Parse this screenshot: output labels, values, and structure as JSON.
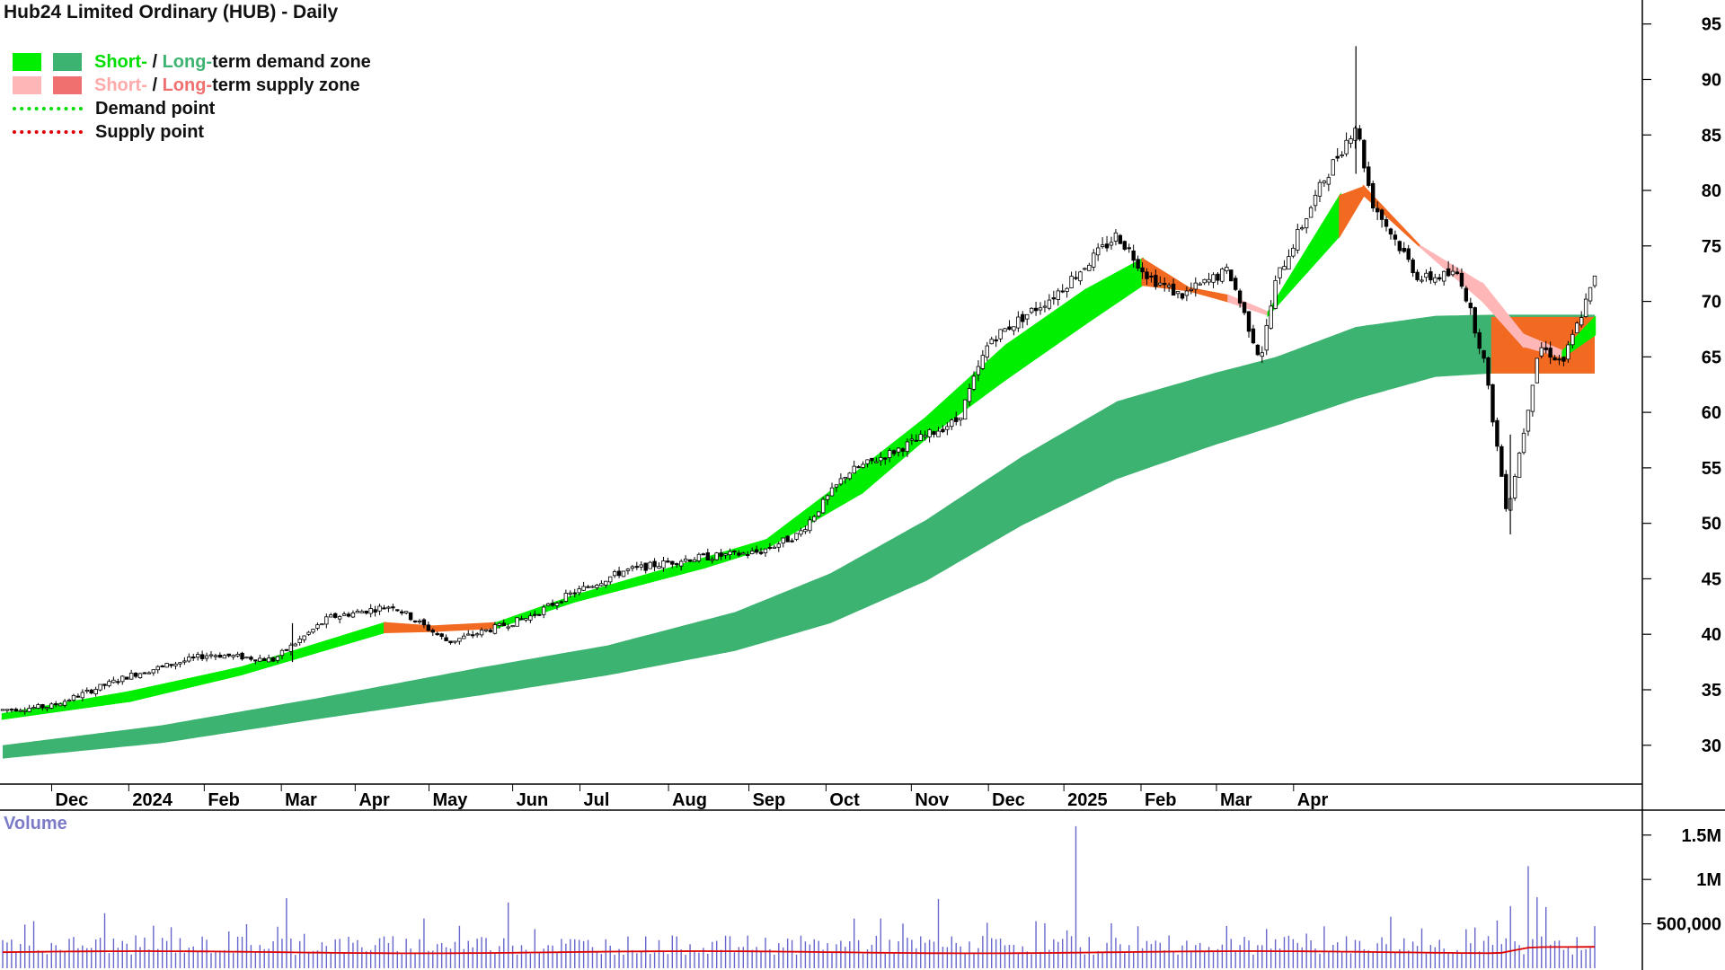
{
  "title": "Hub24 Limited Ordinary (HUB) - Daily",
  "legend": {
    "demand_short": "Short-",
    "demand_sep": " / ",
    "demand_long": "Long-",
    "demand_rest": "term demand zone",
    "supply_short": "Short-",
    "supply_sep": " / ",
    "supply_long": "Long-",
    "supply_rest": "term supply zone",
    "demand_point": "Demand point",
    "supply_point": "Supply point"
  },
  "colors": {
    "short_demand": "#00ee00",
    "long_demand": "#3cb371",
    "short_supply": "#ffb6b6",
    "long_supply": "#f07070",
    "zone_orange": "#f26a21",
    "demand_point": "#00dd00",
    "supply_point": "#dd0000",
    "volume_bar": "#6666cc",
    "volume_avg": "#dd0000",
    "volume_label": "#7b7bc8"
  },
  "chart_data": {
    "type": "candlestick",
    "price_axis": {
      "ticks": [
        95,
        90,
        85,
        80,
        75,
        70,
        65,
        60,
        55,
        50,
        45,
        40,
        35,
        30
      ],
      "ylim": [
        26.5,
        97
      ]
    },
    "time_axis": {
      "labels": [
        "Dec",
        "2024",
        "Feb",
        "Mar",
        "Apr",
        "May",
        "Jun",
        "Jul",
        "Aug",
        "Sep",
        "Oct",
        "Nov",
        "Dec",
        "2025",
        "Feb",
        "Mar",
        "Apr"
      ]
    },
    "volume_axis": {
      "label": "Volume",
      "ticks": [
        "1.5M",
        "1M",
        "500,000"
      ],
      "tick_values": [
        1500000,
        1000000,
        500000
      ],
      "ylim": [
        0,
        1700000
      ]
    },
    "price_path": [
      {
        "t": 0,
        "p": 33.2
      },
      {
        "t": 0.03,
        "p": 33.5
      },
      {
        "t": 0.08,
        "p": 36.3
      },
      {
        "t": 0.13,
        "p": 38.2
      },
      {
        "t": 0.17,
        "p": 37.7
      },
      {
        "t": 0.205,
        "p": 41.5
      },
      {
        "t": 0.245,
        "p": 42.6
      },
      {
        "t": 0.28,
        "p": 39.3
      },
      {
        "t": 0.33,
        "p": 41.5
      },
      {
        "t": 0.355,
        "p": 43.5
      },
      {
        "t": 0.39,
        "p": 45.7
      },
      {
        "t": 0.43,
        "p": 46.8
      },
      {
        "t": 0.475,
        "p": 47.4
      },
      {
        "t": 0.5,
        "p": 49.0
      },
      {
        "t": 0.53,
        "p": 54.5
      },
      {
        "t": 0.56,
        "p": 56.5
      },
      {
        "t": 0.6,
        "p": 59.3
      },
      {
        "t": 0.62,
        "p": 66.5
      },
      {
        "t": 0.66,
        "p": 70.5
      },
      {
        "t": 0.7,
        "p": 76.0
      },
      {
        "t": 0.72,
        "p": 72.2
      },
      {
        "t": 0.74,
        "p": 70.5
      },
      {
        "t": 0.77,
        "p": 72.8
      },
      {
        "t": 0.79,
        "p": 64.8
      },
      {
        "t": 0.8,
        "p": 72.0
      },
      {
        "t": 0.83,
        "p": 81.0
      },
      {
        "t": 0.85,
        "p": 86.0
      },
      {
        "t": 0.86,
        "p": 79.0
      },
      {
        "t": 0.89,
        "p": 72.0
      },
      {
        "t": 0.915,
        "p": 72.5
      },
      {
        "t": 0.93,
        "p": 65.0
      },
      {
        "t": 0.945,
        "p": 51.0
      },
      {
        "t": 0.955,
        "p": 58.0
      },
      {
        "t": 0.965,
        "p": 66.0
      },
      {
        "t": 0.98,
        "p": 64.5
      },
      {
        "t": 1,
        "p": 72.0
      }
    ],
    "short_term_zone": [
      {
        "t": 0,
        "upper": 32.8,
        "lower": 32.4
      },
      {
        "t": 0.08,
        "upper": 34.8,
        "lower": 34.0
      },
      {
        "t": 0.15,
        "upper": 37.0,
        "lower": 36.4
      },
      {
        "t": 0.24,
        "upper": 41.0,
        "lower": 40.2
      },
      {
        "t": 0.27,
        "upper": 40.7,
        "lower": 40.3
      },
      {
        "t": 0.31,
        "upper": 41.0,
        "lower": 40.6
      },
      {
        "t": 0.36,
        "upper": 43.5,
        "lower": 43.0
      },
      {
        "t": 0.44,
        "upper": 46.8,
        "lower": 46.0
      },
      {
        "t": 0.48,
        "upper": 48.5,
        "lower": 47.8
      },
      {
        "t": 0.54,
        "upper": 55.0,
        "lower": 52.8
      },
      {
        "t": 0.58,
        "upper": 59.5,
        "lower": 57.7
      },
      {
        "t": 0.63,
        "upper": 66.0,
        "lower": 63.0
      },
      {
        "t": 0.68,
        "upper": 71.0,
        "lower": 68.0
      },
      {
        "t": 0.716,
        "upper": 73.8,
        "lower": 71.5
      },
      {
        "t": 0.745,
        "upper": 71.2,
        "lower": 71.0
      },
      {
        "t": 0.77,
        "upper": 70.5,
        "lower": 70.0
      },
      {
        "t": 0.795,
        "upper": 69.0,
        "lower": 68.8
      },
      {
        "t": 0.84,
        "upper": 79.5,
        "lower": 76.0
      },
      {
        "t": 0.855,
        "upper": 80.3,
        "lower": 79.6
      },
      {
        "t": 0.89,
        "upper": 75.0,
        "lower": 75.0
      },
      {
        "t": 0.93,
        "upper": 71.5,
        "lower": 70.0
      },
      {
        "t": 0.955,
        "upper": 67.0,
        "lower": 66.0
      },
      {
        "t": 0.98,
        "upper": 65.5,
        "lower": 65.0
      },
      {
        "t": 1,
        "upper": 68.5,
        "lower": 67.0
      }
    ],
    "long_term_zone": [
      {
        "t": 0,
        "upper": 30.0,
        "lower": 28.8
      },
      {
        "t": 0.1,
        "upper": 31.8,
        "lower": 30.2
      },
      {
        "t": 0.2,
        "upper": 34.3,
        "lower": 32.4
      },
      {
        "t": 0.3,
        "upper": 37.0,
        "lower": 34.5
      },
      {
        "t": 0.38,
        "upper": 39.0,
        "lower": 36.3
      },
      {
        "t": 0.46,
        "upper": 42.0,
        "lower": 38.5
      },
      {
        "t": 0.52,
        "upper": 45.5,
        "lower": 41.0
      },
      {
        "t": 0.58,
        "upper": 50.3,
        "lower": 44.8
      },
      {
        "t": 0.64,
        "upper": 56.0,
        "lower": 49.8
      },
      {
        "t": 0.7,
        "upper": 61.0,
        "lower": 54.0
      },
      {
        "t": 0.76,
        "upper": 63.5,
        "lower": 57.0
      },
      {
        "t": 0.8,
        "upper": 65.0,
        "lower": 58.8
      },
      {
        "t": 0.85,
        "upper": 67.7,
        "lower": 61.2
      },
      {
        "t": 0.9,
        "upper": 68.7,
        "lower": 63.2
      },
      {
        "t": 0.935,
        "upper": 68.8,
        "lower": 63.5
      },
      {
        "t": 1,
        "upper": 68.8,
        "lower": 63.5
      }
    ],
    "volume_avg_level": 180000
  }
}
